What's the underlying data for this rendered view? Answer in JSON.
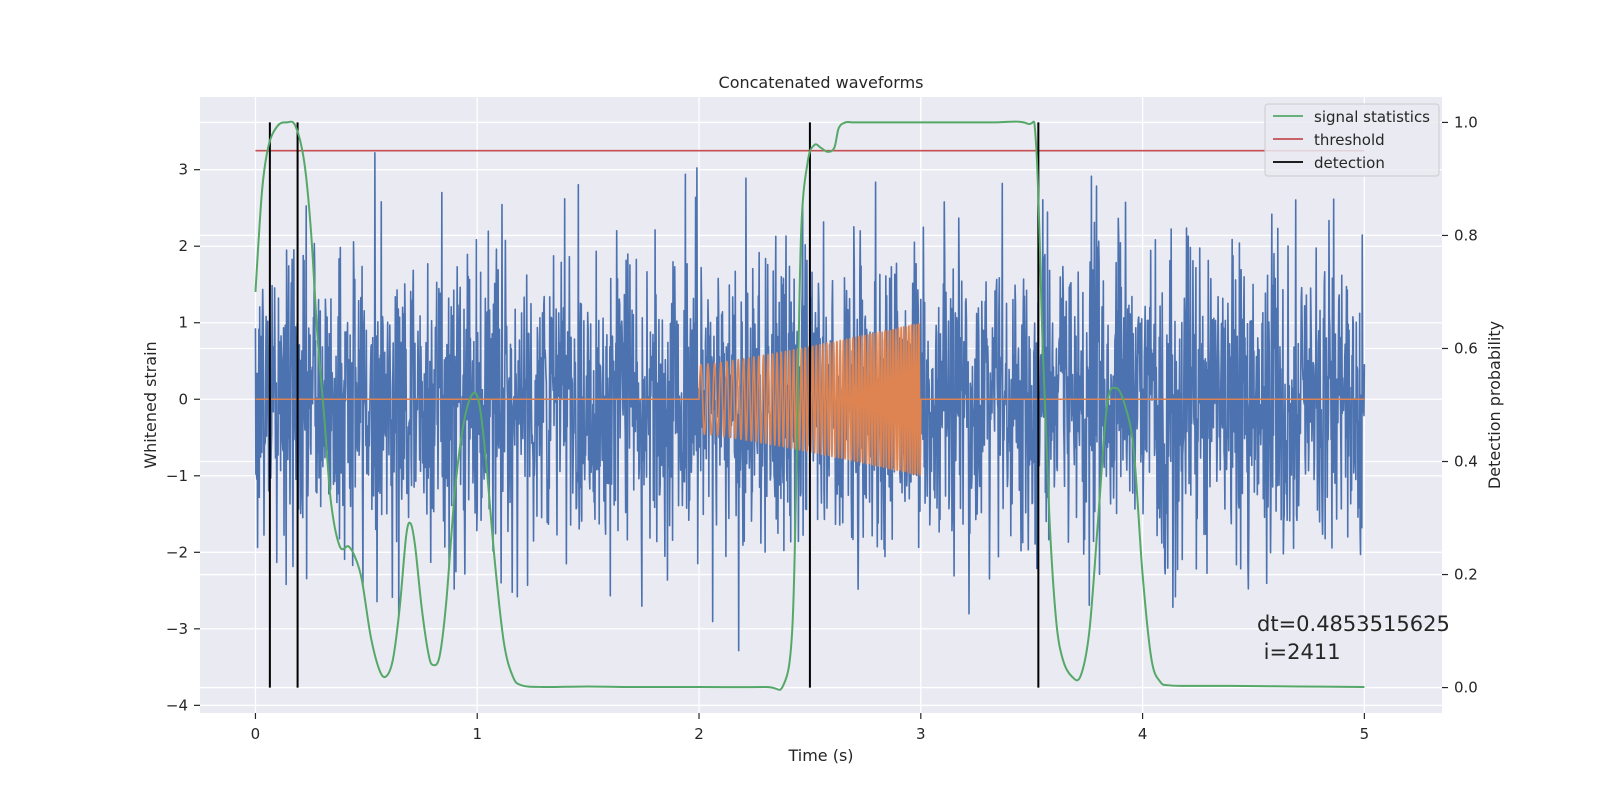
{
  "chart_data": {
    "type": "line",
    "title": "Concatenated waveforms",
    "xlabel": "Time (s)",
    "ylabel_left": "Whitened strain",
    "ylabel_right": "Detection probability",
    "xlim": [
      -0.25,
      5.35
    ],
    "ylim_left": [
      -4.1,
      3.95
    ],
    "ylim_right": [
      -0.045,
      1.045
    ],
    "x_ticks": [
      "0",
      "1",
      "2",
      "3",
      "4",
      "5"
    ],
    "x_tick_values": [
      0,
      1,
      2,
      3,
      4,
      5
    ],
    "y_left_ticks": [
      "−4",
      "−3",
      "−2",
      "−1",
      "0",
      "1",
      "2",
      "3"
    ],
    "y_left_tick_values": [
      -4,
      -3,
      -2,
      -1,
      0,
      1,
      2,
      3
    ],
    "y_right_ticks": [
      "0.0",
      "0.2",
      "0.4",
      "0.6",
      "0.8",
      "1.0"
    ],
    "y_right_tick_values": [
      0,
      0.2,
      0.4,
      0.6,
      0.8,
      1.0
    ],
    "grid": true,
    "legend": {
      "placement": "top-right",
      "entries": [
        {
          "label": "signal statistics",
          "color": "#55a868"
        },
        {
          "label": "threshold",
          "color": "#c44e52"
        },
        {
          "label": "detection",
          "color": "#000000"
        }
      ]
    },
    "strain": {
      "color": "#4c72b0",
      "x_range": [
        0,
        5
      ],
      "noise_std": 1.0,
      "peak_range": [
        -3.7,
        3.55
      ]
    },
    "injected_waveform": {
      "color": "#dd8452",
      "x_range": [
        2.0,
        3.0
      ],
      "amplitude_start": 0.45,
      "amplitude_end": 1.0
    },
    "signal_statistics": {
      "color": "#55a868",
      "x": [
        0.0,
        0.03,
        0.06,
        0.1,
        0.14,
        0.18,
        0.22,
        0.25,
        0.28,
        0.31,
        0.34,
        0.38,
        0.42,
        0.45,
        0.48,
        0.52,
        0.56,
        0.59,
        0.62,
        0.65,
        0.68,
        0.7,
        0.72,
        0.75,
        0.78,
        0.8,
        0.83,
        0.86,
        0.9,
        0.94,
        0.98,
        1.01,
        1.04,
        1.08,
        1.12,
        1.16,
        1.2,
        1.3,
        1.5,
        1.7,
        2.0,
        2.3,
        2.38,
        2.42,
        2.44,
        2.46,
        2.49,
        2.52,
        2.55,
        2.58,
        2.61,
        2.63,
        2.66,
        2.7,
        2.8,
        3.0,
        3.3,
        3.48,
        3.52,
        3.55,
        3.58,
        3.61,
        3.64,
        3.68,
        3.72,
        3.76,
        3.8,
        3.84,
        3.88,
        3.92,
        3.96,
        4.0,
        4.04,
        4.08,
        4.12,
        4.2,
        4.4,
        4.7,
        5.0
      ],
      "y": [
        0.7,
        0.88,
        0.96,
        0.994,
        1.0,
        0.994,
        0.93,
        0.81,
        0.62,
        0.48,
        0.33,
        0.25,
        0.25,
        0.23,
        0.19,
        0.09,
        0.03,
        0.02,
        0.05,
        0.14,
        0.27,
        0.29,
        0.25,
        0.14,
        0.06,
        0.04,
        0.055,
        0.15,
        0.35,
        0.47,
        0.52,
        0.5,
        0.4,
        0.22,
        0.08,
        0.02,
        0.004,
        0.001,
        0.002,
        0.001,
        0.001,
        0.001,
        0.004,
        0.1,
        0.4,
        0.8,
        0.93,
        0.96,
        0.955,
        0.948,
        0.955,
        0.99,
        1.0,
        1.0,
        1.0,
        1.0,
        1.0,
        0.998,
        0.96,
        0.6,
        0.3,
        0.12,
        0.05,
        0.02,
        0.02,
        0.1,
        0.3,
        0.5,
        0.53,
        0.5,
        0.42,
        0.2,
        0.05,
        0.01,
        0.004,
        0.003,
        0.003,
        0.002,
        0.001
      ]
    },
    "threshold": {
      "color": "#c44e52",
      "value": 0.95,
      "x_range": [
        0,
        5
      ]
    },
    "detections": {
      "color": "#000000",
      "x": [
        0.065,
        0.19,
        2.5,
        3.53
      ],
      "y_range": [
        0,
        1.0
      ]
    },
    "annotation": {
      "line1": "dt=0.4853515625",
      "line2": " i=2411"
    }
  }
}
